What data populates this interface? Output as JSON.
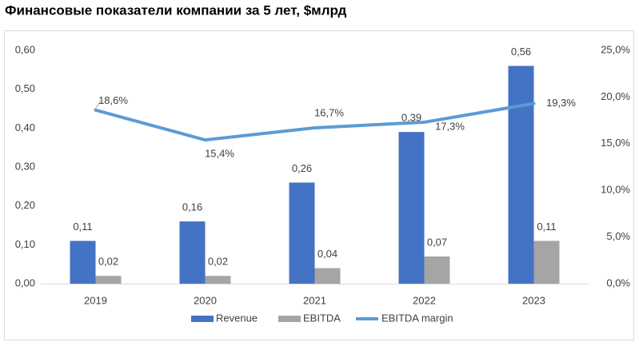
{
  "chart_data": {
    "type": "bar",
    "title": "Финансовые показатели компании за 5 лет, $млрд",
    "categories": [
      "2019",
      "2020",
      "2021",
      "2022",
      "2023"
    ],
    "series": [
      {
        "name": "Revenue",
        "color": "#4472c4",
        "values": [
          0.11,
          0.16,
          0.26,
          0.39,
          0.56
        ],
        "value_labels": [
          "0,11",
          "0,16",
          "0,26",
          "0,39",
          "0,56"
        ]
      },
      {
        "name": "EBITDA",
        "color": "#a5a5a5",
        "values": [
          0.02,
          0.02,
          0.04,
          0.07,
          0.11
        ],
        "value_labels": [
          "0,02",
          "0,02",
          "0,04",
          "0,07",
          "0,11"
        ]
      },
      {
        "name": "EBITDA margin",
        "type": "line",
        "axis": "y2",
        "color": "#5b9bd5",
        "values": [
          18.6,
          15.4,
          16.7,
          17.3,
          19.3
        ],
        "value_labels": [
          "18,6%",
          "15,4%",
          "16,7%",
          "17,3%",
          "19,3%"
        ]
      }
    ],
    "ylim": [
      0,
      0.6
    ],
    "yticks": [
      {
        "value": 0,
        "label": "0,00"
      },
      {
        "value": 0.1,
        "label": "0,10"
      },
      {
        "value": 0.2,
        "label": "0,20"
      },
      {
        "value": 0.3,
        "label": "0,30"
      },
      {
        "value": 0.4,
        "label": "0,40"
      },
      {
        "value": 0.5,
        "label": "0,50"
      },
      {
        "value": 0.6,
        "label": "0,60"
      }
    ],
    "y2lim": [
      0,
      25
    ],
    "y2ticks": [
      {
        "value": 0,
        "label": "0,0%"
      },
      {
        "value": 5,
        "label": "5,0%"
      },
      {
        "value": 10,
        "label": "10,0%"
      },
      {
        "value": 15,
        "label": "15,0%"
      },
      {
        "value": 20,
        "label": "20,0%"
      },
      {
        "value": 25,
        "label": "25,0%"
      }
    ],
    "grid": false,
    "legend": "bottom"
  }
}
